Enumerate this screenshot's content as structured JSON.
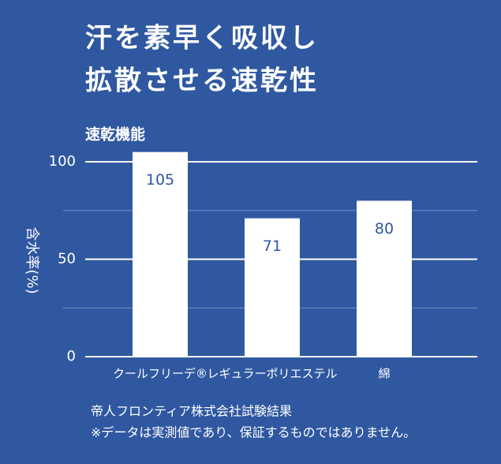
{
  "chart_data": {
    "type": "bar",
    "title": "汗を素早く吸収し",
    "title_line2": "拡散させる速乾性",
    "subtitle": "速乾機能",
    "y_label": "含水率(%)",
    "categories": [
      "クールフリーデ®",
      "レギュラーポリエステル",
      "綿"
    ],
    "values": [
      105,
      71,
      80
    ],
    "color": "#ffffff",
    "ylim": [
      0,
      100
    ],
    "yticks": [
      0,
      50,
      100
    ],
    "minor_yticks": [
      25,
      75
    ],
    "grid": true,
    "notes": [
      "帝人フロンティア株式会社試験結果",
      "※データは実測値であり、保証するものではありません。"
    ]
  }
}
